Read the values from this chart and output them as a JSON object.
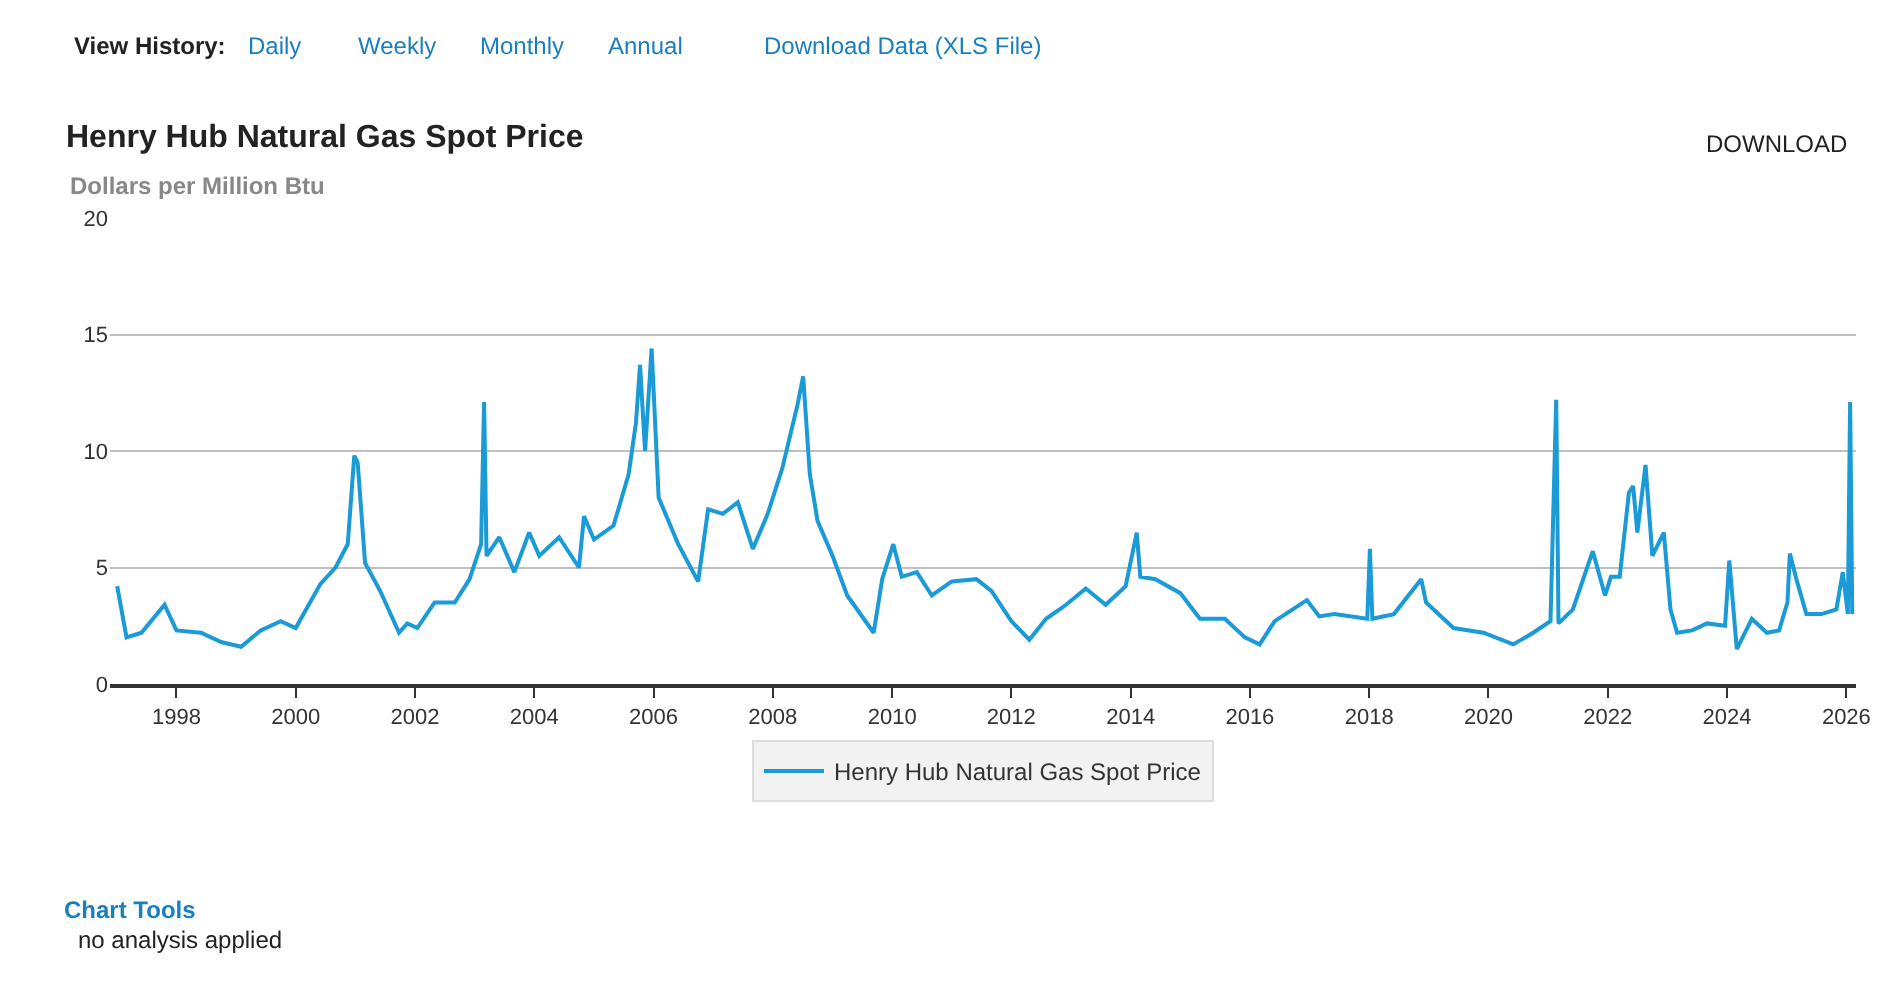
{
  "chart_data": {
    "type": "line",
    "title": "Henry Hub Natural Gas Spot Price",
    "subtitle": "Dollars per Million Btu",
    "x": [
      "1997-01-03",
      "1997-03-01",
      "1997-06-01",
      "1997-10-20",
      "1998-01-01",
      "1998-06-01",
      "1998-10-01",
      "1999-02-01",
      "1999-06-01",
      "1999-10-01",
      "2000-01-01",
      "2000-06-01",
      "2000-09-01",
      "2000-11-15",
      "2000-12-25",
      "2001-01-15",
      "2001-03-01",
      "2001-06-01",
      "2001-09-25",
      "2001-11-15",
      "2002-01-15",
      "2002-05-01",
      "2002-09-01",
      "2002-12-01",
      "2003-02-10",
      "2003-02-28",
      "2003-03-15",
      "2003-06-01",
      "2003-09-01",
      "2003-12-01",
      "2004-02-01",
      "2004-06-01",
      "2004-10-01",
      "2004-11-01",
      "2005-01-01",
      "2005-05-01",
      "2005-08-01",
      "2005-09-15",
      "2005-10-10",
      "2005-11-10",
      "2005-12-20",
      "2006-02-01",
      "2006-06-01",
      "2006-10-01",
      "2006-12-01",
      "2007-03-01",
      "2007-06-01",
      "2007-09-01",
      "2007-12-01",
      "2008-03-01",
      "2008-06-01",
      "2008-07-05",
      "2008-08-15",
      "2008-10-01",
      "2009-01-01",
      "2009-04-01",
      "2009-09-10",
      "2009-11-01",
      "2010-01-08",
      "2010-03-01",
      "2010-06-01",
      "2010-09-01",
      "2011-01-01",
      "2011-06-01",
      "2011-09-01",
      "2012-01-01",
      "2012-04-20",
      "2012-08-01",
      "2012-12-01",
      "2013-04-01",
      "2013-08-01",
      "2013-12-01",
      "2014-02-07",
      "2014-03-01",
      "2014-06-01",
      "2014-11-01",
      "2015-03-01",
      "2015-08-01",
      "2015-12-01",
      "2016-03-01",
      "2016-06-01",
      "2016-12-15",
      "2017-03-01",
      "2017-06-01",
      "2017-12-20",
      "2018-01-05",
      "2018-01-20",
      "2018-06-01",
      "2018-11-15",
      "2018-12-15",
      "2019-06-01",
      "2019-12-01",
      "2020-06-01",
      "2020-10-01",
      "2021-01-15",
      "2021-02-19",
      "2021-03-05",
      "2021-06-01",
      "2021-10-01",
      "2021-12-15",
      "2022-01-20",
      "2022-03-15",
      "2022-05-10",
      "2022-06-05",
      "2022-07-01",
      "2022-08-20",
      "2022-10-01",
      "2022-12-10",
      "2023-01-20",
      "2023-03-01",
      "2023-06-01",
      "2023-09-01",
      "2023-12-20",
      "2024-01-15",
      "2024-03-01",
      "2024-06-01",
      "2024-09-01",
      "2024-11-15",
      "2025-01-05",
      "2025-01-20",
      "2025-03-01",
      "2025-05-01",
      "2025-08-01",
      "2025-11-01",
      "2025-12-10",
      "2026-01-10",
      "2026-01-24",
      "2026-02-06"
    ],
    "series": [
      {
        "name": "Henry Hub Natural Gas Spot Price",
        "color": "#1a9ad6",
        "values": [
          4.2,
          2.0,
          2.2,
          3.4,
          2.3,
          2.2,
          1.8,
          1.6,
          2.3,
          2.7,
          2.4,
          4.3,
          5.0,
          6.0,
          9.8,
          9.5,
          5.2,
          4.0,
          2.2,
          2.6,
          2.4,
          3.5,
          3.5,
          4.5,
          6.0,
          12.1,
          5.5,
          6.3,
          4.8,
          6.5,
          5.5,
          6.3,
          5.0,
          7.2,
          6.2,
          6.8,
          9.0,
          11.2,
          13.7,
          10.0,
          14.4,
          8.0,
          6.0,
          4.4,
          7.5,
          7.3,
          7.8,
          5.8,
          7.3,
          9.3,
          12.0,
          13.2,
          9.0,
          7.0,
          5.5,
          3.8,
          2.2,
          4.5,
          6.0,
          4.6,
          4.8,
          3.8,
          4.4,
          4.5,
          4.0,
          2.7,
          1.9,
          2.8,
          3.4,
          4.1,
          3.4,
          4.2,
          6.5,
          4.6,
          4.5,
          3.9,
          2.8,
          2.8,
          2.0,
          1.7,
          2.7,
          3.6,
          2.9,
          3.0,
          2.8,
          5.8,
          2.8,
          3.0,
          4.5,
          3.5,
          2.4,
          2.2,
          1.7,
          2.2,
          2.7,
          12.2,
          2.6,
          3.2,
          5.7,
          3.8,
          4.6,
          4.6,
          8.2,
          8.5,
          6.5,
          9.4,
          5.5,
          6.5,
          3.2,
          2.2,
          2.3,
          2.6,
          2.5,
          5.3,
          1.5,
          2.8,
          2.2,
          2.3,
          3.5,
          5.6,
          4.5,
          3.0,
          3.0,
          3.2,
          4.8,
          3.0,
          12.1,
          3.0
        ]
      }
    ],
    "xlim": [
      "1996-11-20",
      "2026-03-01"
    ],
    "xticks": [
      {
        "value": "1998",
        "label": "1998"
      },
      {
        "value": "2000",
        "label": "2000"
      },
      {
        "value": "2002",
        "label": "2002"
      },
      {
        "value": "2004",
        "label": "2004"
      },
      {
        "value": "2006",
        "label": "2006"
      },
      {
        "value": "2008",
        "label": "2008"
      },
      {
        "value": "2010",
        "label": "2010"
      },
      {
        "value": "2012",
        "label": "2012"
      },
      {
        "value": "2014",
        "label": "2014"
      },
      {
        "value": "2016",
        "label": "2016"
      },
      {
        "value": "2018",
        "label": "2018"
      },
      {
        "value": "2020",
        "label": "2020"
      },
      {
        "value": "2022",
        "label": "2022"
      },
      {
        "value": "2024",
        "label": "2024"
      },
      {
        "value": "2026",
        "label": "2026"
      }
    ],
    "ylim": [
      0,
      20
    ],
    "yticks": [
      0,
      5,
      10,
      15,
      20
    ],
    "grid": "y",
    "legend": "bottom",
    "marker": "none",
    "line_style": "solid",
    "annotations": [
      "View History:",
      "Daily",
      "Weekly",
      "Monthly",
      "Annual",
      "Download Data (XLS File)",
      "DOWNLOAD",
      "Chart Tools",
      "no analysis applied"
    ]
  }
}
